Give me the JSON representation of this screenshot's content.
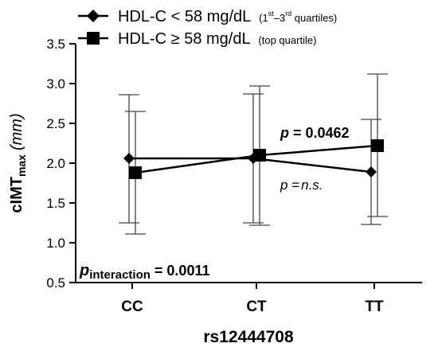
{
  "chart_data": {
    "type": "line",
    "categories": [
      "CC",
      "CT",
      "TT"
    ],
    "xlabel": "rs12444708",
    "ylabel": {
      "main": "cIMT",
      "sub": "max",
      "unit": "(mm)"
    },
    "ylim": [
      0.5,
      3.5
    ],
    "yticks": [
      "0.5",
      "1.0",
      "1.5",
      "2.0",
      "2.5",
      "3.0",
      "3.5"
    ],
    "grid": false,
    "legend_position": "top",
    "series": [
      {
        "name": "HDL-C < 58 mg/dL",
        "name_note": {
          "pre": "(1",
          "sup1": "st",
          "mid": "–3",
          "sup2": "rd",
          "post": " quartiles)"
        },
        "marker": "diamond",
        "values": [
          2.06,
          2.06,
          1.89
        ],
        "error_low": [
          1.25,
          1.25,
          1.23
        ],
        "error_high": [
          2.86,
          2.87,
          2.55
        ]
      },
      {
        "name": "HDL-C ≥ 58 mg/dL",
        "name_note": "(top quartile)",
        "marker": "square",
        "values": [
          1.88,
          2.1,
          2.22
        ],
        "error_low": [
          1.11,
          1.22,
          1.33
        ],
        "error_high": [
          2.65,
          2.97,
          3.12
        ]
      }
    ],
    "annotations": {
      "top_series_p": {
        "italic": "p",
        "rest": " = 0.0462"
      },
      "bottom_series_p": {
        "italic": "p",
        "rest": " =",
        "italic2": "n.s."
      },
      "interaction_p": {
        "italic": "p",
        "sub": "interaction",
        "rest": " = 0.0011"
      }
    }
  }
}
